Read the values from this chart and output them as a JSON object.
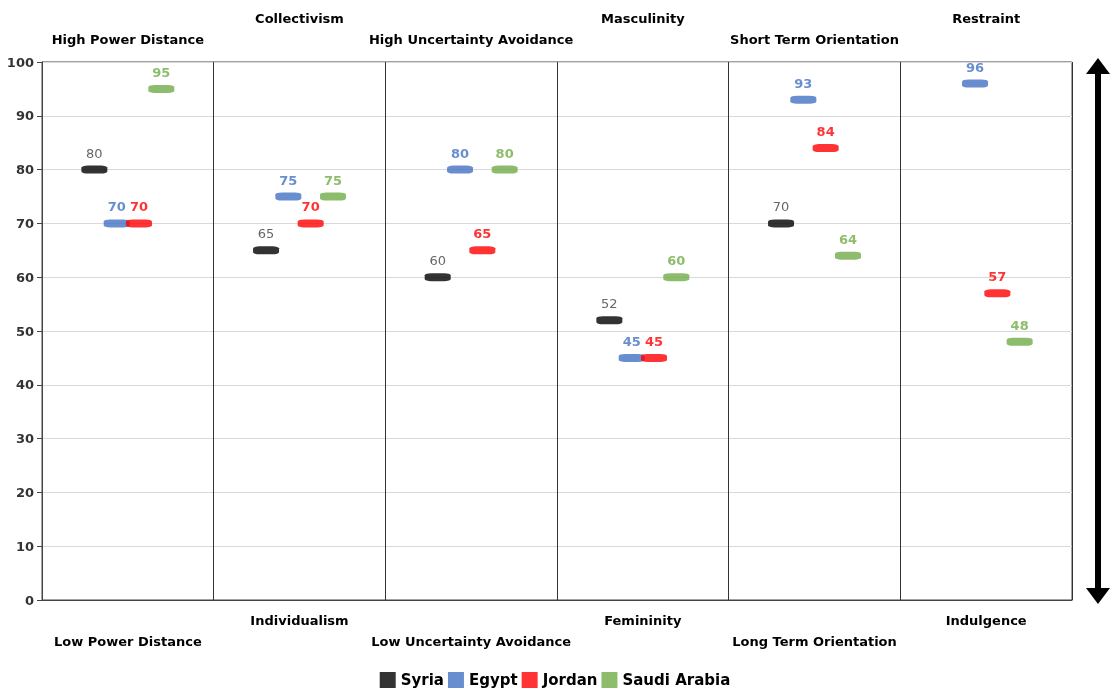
{
  "chart_data": {
    "type": "scatter",
    "categories": [
      "Low Power Distance",
      "Individualism",
      "Low Uncertainty Avoidance",
      "Femininity",
      "Long Term Orientation",
      "Indulgence"
    ],
    "annotations": [
      "High Power Distance",
      "Collectivism",
      "High Uncertainty Avoidance",
      "Masculinity",
      "Short Term Orientation",
      "Restraint"
    ],
    "series": [
      {
        "name": "Syria",
        "color": "#000000",
        "values": [
          80,
          65,
          60,
          52,
          70,
          null
        ]
      },
      {
        "name": "Egypt",
        "color": "#4472c4",
        "values": [
          70,
          75,
          80,
          45,
          93,
          96
        ]
      },
      {
        "name": "Jordan",
        "color": "#ff0000",
        "values": [
          70,
          70,
          65,
          45,
          84,
          57
        ]
      },
      {
        "name": "Saudi Arabia",
        "color": "#70ad47",
        "values": [
          95,
          75,
          80,
          60,
          64,
          48
        ]
      }
    ],
    "ylim": [
      0,
      100
    ],
    "yticks": [
      0,
      10,
      20,
      30,
      40,
      50,
      60,
      70,
      80,
      90,
      100
    ],
    "grid": true,
    "legend": "bottom",
    "marker": "square",
    "data_labels": true
  }
}
